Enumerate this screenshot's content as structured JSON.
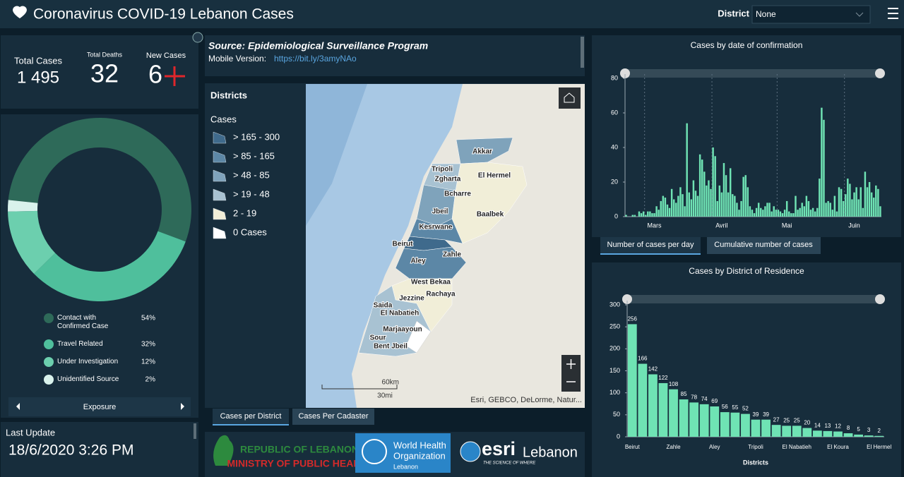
{
  "header": {
    "title": "Coronavirus COVID-19 Lebanon Cases",
    "filter_label": "District",
    "filter_value": "None"
  },
  "stats": {
    "total_cases": {
      "label": "Total Cases",
      "value": "1 495"
    },
    "total_deaths": {
      "label": "Total Deaths",
      "value": "32"
    },
    "new_cases": {
      "label": "New Cases",
      "value": "6"
    }
  },
  "last_update": {
    "label": "Last Update",
    "value": "18/6/2020 3:26 PM"
  },
  "source": {
    "title": "Source: Epidemiological Surveillance Program",
    "mobile_label": "Mobile Version:",
    "mobile_link": "https://bit.ly/3amyNAo"
  },
  "map": {
    "legend_title": "Districts",
    "legend_subtitle": "Cases",
    "legend_items": [
      {
        "label": "> 165 - 300",
        "color": "#3f6a8c"
      },
      {
        "label": "> 85 - 165",
        "color": "#5c87a6"
      },
      {
        "label": "> 48 - 85",
        "color": "#7fa3bb"
      },
      {
        "label": "> 19 - 48",
        "color": "#a8c2d2"
      },
      {
        "label": "2 - 19",
        "color": "#f1eed8"
      },
      {
        "label": "0 Cases",
        "color": "#ffffff"
      }
    ],
    "labels": [
      "Akkar",
      "Tripoli",
      "Zgharta",
      "El Hermel",
      "Bcharre",
      "Jbeil",
      "Baalbek",
      "Kesrwane",
      "Beirut",
      "Zahle",
      "Aley",
      "West Bekaa",
      "Rachaya",
      "Jezzine",
      "Saida",
      "El Nabatieh",
      "Marjaayoun",
      "Sour",
      "Bent Jbeil"
    ],
    "scale_km": "60km",
    "scale_mi": "30mi",
    "attribution": "Esri, GEBCO, DeLorme, Natur...",
    "tabs": [
      "Cases per District",
      "Cases Per Cadaster"
    ]
  },
  "logos": {
    "moph_line1": "REPUBLIC OF LEBANON",
    "moph_line2": "MINISTRY OF PUBLIC HEALTH",
    "who_line1": "World Health",
    "who_line2": "Organization",
    "who_line3": "Lebanon",
    "esri": "esri",
    "esri_country": "Lebanon",
    "esri_tagline": "THE SCIENCE OF WHERE"
  },
  "chart_tabs": [
    "Number of cases per day",
    "Cumulative number of cases"
  ],
  "chart_data": [
    {
      "type": "pie",
      "title": "Exposure",
      "categories": [
        "Contact with Confirmed Case",
        "Travel Related",
        "Under Investigation",
        "Unidentified Source"
      ],
      "values": [
        54,
        32,
        12,
        2
      ],
      "value_labels": [
        "54%",
        "32%",
        "12%",
        "2%"
      ],
      "colors": [
        "#2e6a59",
        "#4fbf9c",
        "#6ccfae",
        "#d9f2ec"
      ]
    },
    {
      "type": "bar",
      "title": "Cases by  date of confirmation",
      "categories": [
        null,
        null,
        null,
        null,
        null,
        null,
        null,
        null,
        null,
        null,
        null,
        null,
        null,
        "Mars",
        null,
        null,
        null,
        null,
        null,
        null,
        null,
        null,
        null,
        null,
        null,
        null,
        null,
        null,
        null,
        null,
        null,
        null,
        null,
        null,
        null,
        null,
        null,
        null,
        null,
        null,
        null,
        null,
        null,
        null,
        "Avril",
        null,
        null,
        null,
        null,
        null,
        null,
        null,
        null,
        null,
        null,
        null,
        null,
        null,
        null,
        null,
        null,
        null,
        null,
        null,
        null,
        null,
        null,
        null,
        null,
        null,
        null,
        null,
        null,
        null,
        "Mai",
        null,
        null,
        null,
        null,
        null,
        null,
        null,
        null,
        null,
        null,
        null,
        null,
        null,
        null,
        null,
        null,
        null,
        null,
        null,
        null,
        null,
        null,
        null,
        null,
        null,
        null,
        null,
        null,
        null,
        null,
        "Juin",
        null,
        null,
        null,
        null,
        null,
        null,
        null,
        null,
        null,
        null,
        null,
        null
      ],
      "values": [
        1,
        0,
        0,
        1,
        1,
        0,
        3,
        2,
        3,
        1,
        3,
        3,
        2,
        2,
        6,
        4,
        9,
        12,
        11,
        7,
        5,
        16,
        10,
        8,
        12,
        17,
        13,
        6,
        54,
        14,
        10,
        21,
        15,
        12,
        36,
        33,
        26,
        18,
        21,
        16,
        40,
        35,
        9,
        18,
        14,
        31,
        24,
        14,
        28,
        13,
        12,
        8,
        4,
        9,
        23,
        24,
        17,
        6,
        4,
        2,
        5,
        8,
        5,
        4,
        6,
        8,
        8,
        3,
        6,
        4,
        4,
        3,
        2,
        4,
        9,
        3,
        2,
        2,
        12,
        4,
        5,
        8,
        6,
        12,
        9,
        4,
        5,
        3,
        5,
        22,
        63,
        56,
        8,
        9,
        8,
        4,
        12,
        3,
        17,
        16,
        9,
        13,
        22,
        19,
        10,
        14,
        17,
        10,
        17,
        5,
        26,
        17,
        20,
        14,
        11,
        18,
        16,
        6
      ],
      "color": "#6fe3b4",
      "ylim": [
        0,
        80
      ],
      "yticks": [
        0,
        20,
        40,
        60,
        80
      ],
      "grid": false
    },
    {
      "type": "bar",
      "title": "Cases by District of Residence",
      "xlabel": "Districts",
      "categories": [
        "Beirut",
        null,
        null,
        null,
        "Zahle",
        null,
        null,
        null,
        "Aley",
        null,
        null,
        null,
        "Tripoli",
        null,
        null,
        null,
        "El Nabatieh",
        null,
        null,
        null,
        "El Koura",
        null,
        null,
        null,
        "El Hermel"
      ],
      "values": [
        256,
        166,
        142,
        122,
        108,
        85,
        78,
        74,
        69,
        56,
        55,
        52,
        39,
        39,
        27,
        25,
        25,
        20,
        14,
        13,
        12,
        8,
        5,
        3,
        2
      ],
      "color": "#6fe3b4",
      "ylim": [
        0,
        300
      ],
      "yticks": [
        0,
        50,
        100,
        150,
        200,
        250,
        300
      ],
      "grid": false
    }
  ]
}
